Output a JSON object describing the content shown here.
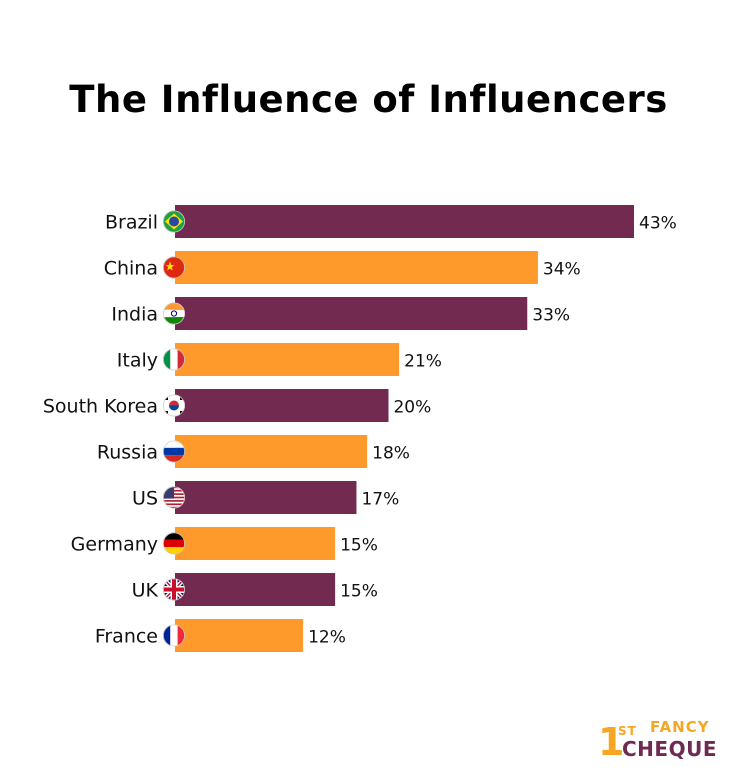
{
  "title": "The Influence of Influencers",
  "colors": {
    "purple": "#722a51",
    "orange": "#fd9a2b"
  },
  "chart_data": {
    "type": "bar",
    "orientation": "horizontal",
    "categories": [
      "Brazil",
      "China",
      "India",
      "Italy",
      "South Korea",
      "Russia",
      "US",
      "Germany",
      "UK",
      "France"
    ],
    "values": [
      43,
      34,
      33,
      21,
      20,
      18,
      17,
      15,
      15,
      12
    ],
    "value_labels": [
      "43%",
      "34%",
      "33%",
      "21%",
      "20%",
      "18%",
      "17%",
      "15%",
      "15%",
      "12%"
    ],
    "flag_icons": [
      "brazil-flag-icon",
      "china-flag-icon",
      "india-flag-icon",
      "italy-flag-icon",
      "south-korea-flag-icon",
      "russia-flag-icon",
      "us-flag-icon",
      "germany-flag-icon",
      "uk-flag-icon",
      "france-flag-icon"
    ],
    "bar_colors": [
      "#722a51",
      "#fd9a2b",
      "#722a51",
      "#fd9a2b",
      "#722a51",
      "#fd9a2b",
      "#722a51",
      "#fd9a2b",
      "#722a51",
      "#fd9a2b"
    ],
    "xlim": [
      0,
      43
    ],
    "grid": false,
    "legend": "none",
    "title": "The Influence of Influencers",
    "xlabel": "",
    "ylabel": ""
  },
  "logo": {
    "prefix": "1",
    "superscript": "ST",
    "line1": "FANCY",
    "line2": "CHEQUE"
  }
}
